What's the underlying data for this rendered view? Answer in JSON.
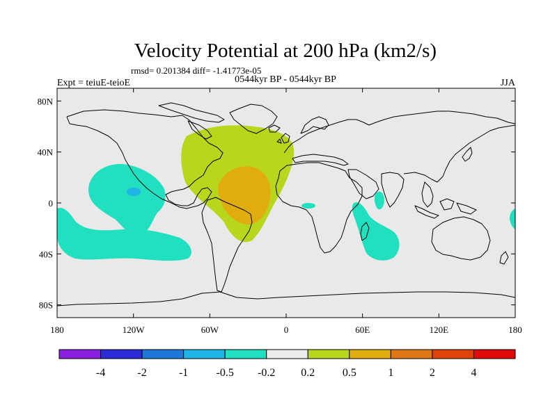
{
  "chart_data": {
    "type": "heatmap",
    "title": "Velocity Potential at 200 hPa (km2/s)",
    "stats_line": "rmsd= 0.201384 diff= -1.41773e-05",
    "left_label": "Expt = teiuE-teioE",
    "center_label": "0544kyr BP - 0544kyr BP",
    "right_label": "JJA",
    "x_axis": {
      "range": [
        -180,
        180
      ],
      "ticks": [
        -180,
        -120,
        -60,
        0,
        60,
        120,
        180
      ],
      "tick_labels": [
        "180",
        "120W",
        "60W",
        "0",
        "60E",
        "120E",
        "180"
      ]
    },
    "y_axis": {
      "range": [
        -90,
        90
      ],
      "ticks": [
        80,
        40,
        0,
        -40,
        -80
      ],
      "tick_labels": [
        "80N",
        "40N",
        "0",
        "40S",
        "80S"
      ]
    },
    "colorbar": {
      "boundaries": [
        "-4",
        "-2",
        "-1",
        "-0.5",
        "-0.2",
        "0.2",
        "0.5",
        "1",
        "2",
        "4"
      ],
      "colors": [
        "#8a1fe0",
        "#2c2cd6",
        "#1e78d8",
        "#1fb3e6",
        "#20e0c0",
        "#ececec",
        "#b8d71c",
        "#e0ac10",
        "#e07818",
        "#e0420c",
        "#e00c0c"
      ]
    },
    "features": [
      {
        "name": "positive-anomaly-atlantic-outer",
        "level": "0.2 to 0.5",
        "color": "#b8d71c"
      },
      {
        "name": "positive-anomaly-atlantic-inner",
        "level": "0.5 to 1",
        "color": "#e0ac10"
      },
      {
        "name": "negative-anomaly-east-pacific",
        "level": "-0.5 to -0.2",
        "color": "#20e0c0"
      },
      {
        "name": "negative-anomaly-east-pacific-core",
        "level": "-1 to -0.5",
        "color": "#1fb3e6"
      },
      {
        "name": "negative-anomaly-south-pacific",
        "level": "-0.5 to -0.2",
        "color": "#20e0c0"
      },
      {
        "name": "negative-anomaly-indian-ocean",
        "level": "-0.5 to -0.2",
        "color": "#20e0c0"
      }
    ]
  }
}
